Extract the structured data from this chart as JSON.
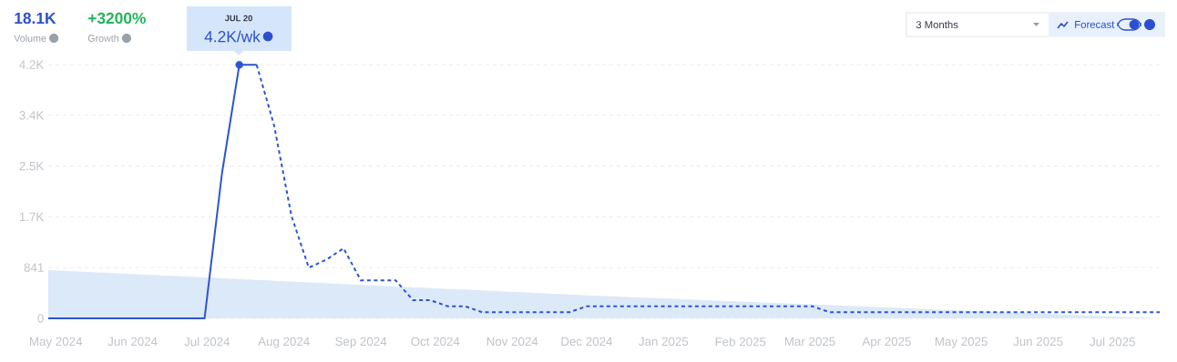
{
  "chart_data": {
    "type": "line",
    "annotations": [
      "18.1K",
      "Volume",
      "+3200%",
      "Growth",
      "JUL 20",
      "4.2K/wk",
      "3 Months",
      "Forecast"
    ],
    "series": [
      {
        "type": "area",
        "color": "#dce9f8",
        "x": [
          "2024-05-04",
          "2024-12-07",
          "2025-07-26"
        ],
        "values": [
          800,
          380,
          0
        ]
      },
      {
        "type": "line",
        "color": "#2b55d6",
        "line_style": "solid",
        "x": [
          "2024-05-04",
          "2024-07-06",
          "2024-07-13",
          "2024-07-20",
          "2024-07-27"
        ],
        "values": [
          0,
          0,
          2400,
          4200,
          4200
        ]
      },
      {
        "type": "line",
        "color": "#2b55d6",
        "line_style": "dashed",
        "x": [
          "2024-07-27",
          "2024-08-03",
          "2024-08-10",
          "2024-08-17",
          "2024-08-24",
          "2024-08-31",
          "2024-09-07",
          "2024-09-21",
          "2024-09-28",
          "2024-10-05",
          "2024-10-12",
          "2024-10-19",
          "2024-10-26",
          "2024-11-30",
          "2024-12-07",
          "2025-03-08",
          "2025-03-15",
          "2025-07-26"
        ],
        "values": [
          4200,
          3200,
          1700,
          840,
          970,
          1160,
          630,
          630,
          300,
          300,
          200,
          200,
          100,
          100,
          200,
          200,
          100,
          100
        ]
      },
      {
        "type": "scatter",
        "color": "#2b55d6",
        "marker": "circle",
        "x": [
          "2024-07-20"
        ],
        "values": [
          4200
        ]
      }
    ],
    "xlim": [
      "2024-05-04",
      "2025-07-26"
    ],
    "xticks": [
      {
        "value": "2024-05-07",
        "label": "May 2024"
      },
      {
        "value": "2024-06-07",
        "label": "Jun 2024"
      },
      {
        "value": "2024-07-07",
        "label": "Jul 2024"
      },
      {
        "value": "2024-08-07",
        "label": "Aug 2024"
      },
      {
        "value": "2024-09-07",
        "label": "Sep 2024"
      },
      {
        "value": "2024-10-07",
        "label": "Oct 2024"
      },
      {
        "value": "2024-11-07",
        "label": "Nov 2024"
      },
      {
        "value": "2024-12-07",
        "label": "Dec 2024"
      },
      {
        "value": "2025-01-07",
        "label": "Jan 2025"
      },
      {
        "value": "2025-02-07",
        "label": "Feb 2025"
      },
      {
        "value": "2025-03-07",
        "label": "Mar 2025"
      },
      {
        "value": "2025-04-07",
        "label": "Apr 2025"
      },
      {
        "value": "2025-05-07",
        "label": "May 2025"
      },
      {
        "value": "2025-06-07",
        "label": "Jun 2025"
      },
      {
        "value": "2025-07-07",
        "label": "Jul 2025"
      }
    ],
    "ylim": [
      0,
      4205
    ],
    "yticks": [
      0,
      841,
      {
        "value": 1682,
        "label": "1.7K"
      },
      {
        "value": 2523,
        "label": "2.5K"
      },
      {
        "value": 3364,
        "label": "3.4K"
      },
      {
        "value": 4205,
        "label": "4.2K"
      }
    ],
    "grid": "y"
  }
}
